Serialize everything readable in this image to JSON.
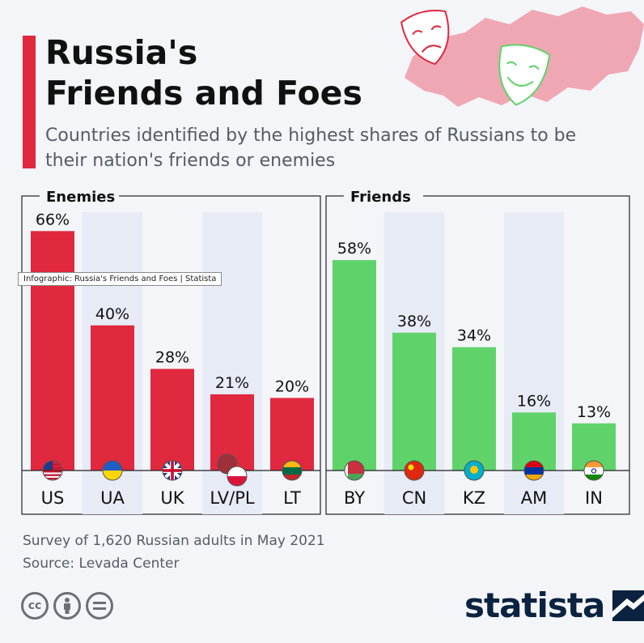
{
  "title_line1": "Russia's",
  "title_line2": "Friends and Foes",
  "subtitle": "Countries identified by the highest shares of Russians to be their nation's friends or enemies",
  "tooltip": "Infographic: Russia's Friends and Foes | Statista",
  "footer": {
    "survey": "Survey of 1,620 Russian adults in May 2021",
    "source": "Source: Levada Center"
  },
  "brand": "statista",
  "icons": [
    "cc-icon",
    "by-attribution-icon",
    "nd-equals-icon",
    "statista-logo-icon",
    "theater-mask-sad-icon",
    "theater-mask-happy-icon",
    "russia-map-decoration"
  ],
  "colors": {
    "accent": "#e0283f",
    "enemies": "#e0283f",
    "friends": "#5fd36a",
    "brand": "#0b2340",
    "stripe": "#e6ebf5"
  },
  "chart_data": [
    {
      "type": "bar",
      "title": "Enemies",
      "categories": [
        "US",
        "UA",
        "UK",
        "LV/PL",
        "LT"
      ],
      "values": [
        66,
        40,
        28,
        21,
        20
      ],
      "labels": [
        "66%",
        "40%",
        "28%",
        "21%",
        "20%"
      ],
      "ylim": [
        0,
        70
      ],
      "grid": false
    },
    {
      "type": "bar",
      "title": "Friends",
      "categories": [
        "BY",
        "CN",
        "KZ",
        "AM",
        "IN"
      ],
      "values": [
        58,
        38,
        34,
        16,
        13
      ],
      "labels": [
        "58%",
        "38%",
        "34%",
        "16%",
        "13%"
      ],
      "ylim": [
        0,
        70
      ],
      "grid": false
    }
  ]
}
